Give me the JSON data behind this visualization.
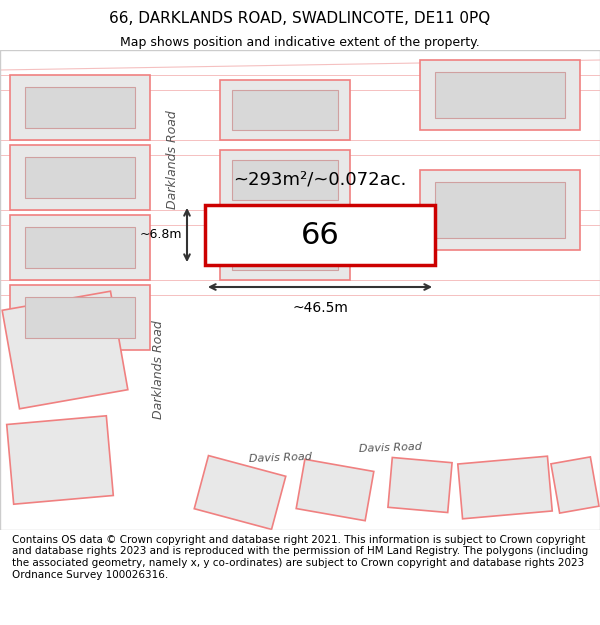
{
  "title_line1": "66, DARKLANDS ROAD, SWADLINCOTE, DE11 0PQ",
  "title_line2": "Map shows position and indicative extent of the property.",
  "footer_text": "Contains OS data © Crown copyright and database right 2021. This information is subject to Crown copyright and database rights 2023 and is reproduced with the permission of HM Land Registry. The polygons (including the associated geometry, namely x, y co-ordinates) are subject to Crown copyright and database rights 2023 Ordnance Survey 100026316.",
  "area_label": "~293m²/~0.072ac.",
  "width_label": "~46.5m",
  "height_label": "~6.8m",
  "number_label": "66",
  "road_name_top": "Darklands Road",
  "road_name_bottom": "Darklands Road",
  "road_name_davis1": "Davis Road",
  "road_name_davis2": "Davis Road",
  "bg_color": "#ffffff",
  "map_bg": "#f5f5f5",
  "road_color": "#ffffff",
  "plot_outline_color": "#cc0000",
  "neighbor_outline_color": "#f08080",
  "neighbor_fill": "#e8e8e8",
  "subject_fill": "#ffffff",
  "road_stripe_color": "#f5c0c0",
  "title_fontsize": 11,
  "footer_fontsize": 7.5
}
